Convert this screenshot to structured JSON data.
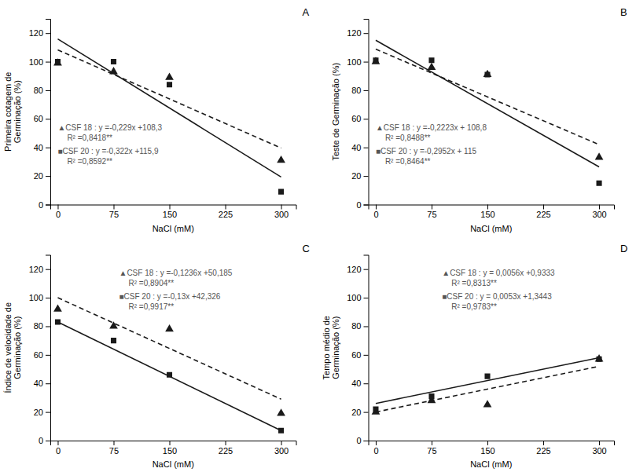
{
  "chart_data": [
    {
      "type": "scatter",
      "title": "A",
      "xlabel": "NaCl (mM)",
      "ylabel": "Primeira cotagem de\nGerminação  (%)",
      "xlim": [
        -10,
        320
      ],
      "xticks": [
        0,
        75,
        150,
        225,
        300
      ],
      "ylim": [
        0,
        130
      ],
      "yticks": [
        0,
        20,
        40,
        60,
        80,
        100,
        120
      ],
      "grid": false,
      "series": [
        {
          "type": "line",
          "line_style": "dashed",
          "color": "#1a1a1a",
          "x": [
            0,
            300
          ],
          "values": [
            108.3,
            39.6
          ]
        },
        {
          "type": "scatter",
          "marker": "triangle",
          "color": "#1a1a1a",
          "x": [
            0,
            75,
            150,
            300
          ],
          "values": [
            99,
            93,
            89,
            31
          ]
        },
        {
          "type": "line",
          "line_style": "solid",
          "color": "#1a1a1a",
          "x": [
            0,
            300
          ],
          "values": [
            115.9,
            19.3
          ]
        },
        {
          "type": "scatter",
          "marker": "square",
          "color": "#1a1a1a",
          "x": [
            0,
            75,
            150,
            300
          ],
          "values": [
            100,
            100,
            84,
            9
          ]
        }
      ],
      "annotations": [
        "▲CSF 18 : y =-0,229x +108,3",
        "R² =0,8418**",
        "■CSF 20 : y =-0,322x +115,9",
        "R² =0,8592**"
      ]
    },
    {
      "type": "scatter",
      "title": "B",
      "xlabel": "NaCl (mM)",
      "ylabel": "Teste de Germinação  (%)",
      "xlim": [
        -10,
        320
      ],
      "xticks": [
        0,
        75,
        150,
        225,
        300
      ],
      "ylim": [
        0,
        130
      ],
      "yticks": [
        0,
        20,
        40,
        60,
        80,
        100,
        120
      ],
      "grid": false,
      "series": [
        {
          "type": "line",
          "line_style": "dashed",
          "color": "#1a1a1a",
          "x": [
            0,
            300
          ],
          "values": [
            108.8,
            42.0
          ]
        },
        {
          "type": "scatter",
          "marker": "triangle",
          "color": "#1a1a1a",
          "x": [
            0,
            75,
            150,
            300
          ],
          "values": [
            100,
            96,
            91,
            33
          ]
        },
        {
          "type": "line",
          "line_style": "solid",
          "color": "#1a1a1a",
          "x": [
            0,
            300
          ],
          "values": [
            115.0,
            26.4
          ]
        },
        {
          "type": "scatter",
          "marker": "square",
          "color": "#1a1a1a",
          "x": [
            0,
            75,
            150,
            300
          ],
          "values": [
            101,
            101,
            91,
            15
          ]
        }
      ],
      "annotations": [
        "▲CSF 18 : y =-0,2223x + 108,8",
        "R² =0,8488**",
        "■CSF 20 : y =-0,2952x + 115",
        "R² =0,8464**"
      ]
    },
    {
      "type": "scatter",
      "title": "C",
      "xlabel": "NaCl (mM)",
      "ylabel": "Índice de velocidade de\nGerminação  (%)",
      "xlim": [
        -10,
        320
      ],
      "xticks": [
        0,
        75,
        150,
        225,
        300
      ],
      "ylim": [
        0,
        130
      ],
      "yticks": [
        0,
        20,
        40,
        60,
        80,
        100,
        120
      ],
      "grid": false,
      "series": [
        {
          "type": "line",
          "line_style": "dashed",
          "color": "#1a1a1a",
          "x": [
            0,
            300
          ],
          "values": [
            100.0,
            29.0
          ]
        },
        {
          "type": "scatter",
          "marker": "triangle",
          "color": "#1a1a1a",
          "x": [
            0,
            75,
            150,
            300
          ],
          "values": [
            92,
            80,
            78,
            19
          ]
        },
        {
          "type": "line",
          "line_style": "solid",
          "color": "#1a1a1a",
          "x": [
            0,
            300
          ],
          "values": [
            83.0,
            7.0
          ]
        },
        {
          "type": "scatter",
          "marker": "square",
          "color": "#1a1a1a",
          "x": [
            0,
            75,
            150,
            300
          ],
          "values": [
            83,
            70,
            46,
            7
          ]
        }
      ],
      "annotations": [
        "▲CSF 18 : y =-0,1236x +50,185",
        "R² =0,8904**",
        "■CSF 20 : y =-0,13x +42,326",
        "R² =0,9917**"
      ]
    },
    {
      "type": "scatter",
      "title": "D",
      "xlabel": "NaCl (mM)",
      "ylabel": "Tempo médio de\nGerminação  (%)",
      "xlim": [
        -10,
        320
      ],
      "xticks": [
        0,
        75,
        150,
        225,
        300
      ],
      "ylim": [
        0,
        130
      ],
      "yticks": [
        0,
        20,
        40,
        60,
        80,
        100,
        120
      ],
      "grid": false,
      "series": [
        {
          "type": "line",
          "line_style": "dashed",
          "color": "#1a1a1a",
          "x": [
            0,
            300
          ],
          "values": [
            20.0,
            52.0
          ]
        },
        {
          "type": "scatter",
          "marker": "triangle",
          "color": "#1a1a1a",
          "x": [
            0,
            75,
            150,
            300
          ],
          "values": [
            20,
            28,
            25,
            57
          ]
        },
        {
          "type": "line",
          "line_style": "solid",
          "color": "#1a1a1a",
          "x": [
            0,
            300
          ],
          "values": [
            26.0,
            58.0
          ]
        },
        {
          "type": "scatter",
          "marker": "square",
          "color": "#1a1a1a",
          "x": [
            0,
            75,
            150,
            300
          ],
          "values": [
            22,
            31,
            45,
            57
          ]
        }
      ],
      "annotations": [
        "▲CSF 18 : y = 0,0056x +0,9333",
        "R² =0,8313**",
        "■CSF 20 : y = 0,0053x +1,3443",
        "R² =0,9783**"
      ]
    }
  ]
}
